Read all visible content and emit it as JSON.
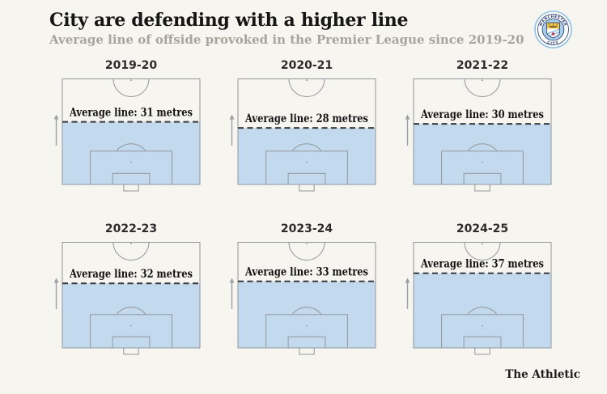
{
  "header": {
    "title": "City are defending with a higher line",
    "subtitle": "Average line of offside provoked in the Premier League since 2019-20",
    "logo_top": "MANCHESTER",
    "logo_bottom": "CITY"
  },
  "footer": {
    "brand": "The Athletic"
  },
  "chart_data": {
    "type": "pitch-small-multiples",
    "title": "City are defending with a higher line",
    "subtitle": "Average line of offside provoked in the Premier League since 2019-20",
    "unit": "metres",
    "seasons": [
      {
        "season": "2019-20",
        "metres": 31,
        "label": "Average line: 31 metres"
      },
      {
        "season": "2020-21",
        "metres": 28,
        "label": "Average line: 28 metres"
      },
      {
        "season": "2021-22",
        "metres": 30,
        "label": "Average line: 30 metres"
      },
      {
        "season": "2022-23",
        "metres": 32,
        "label": "Average line: 32 metres"
      },
      {
        "season": "2023-24",
        "metres": 33,
        "label": "Average line: 33 metres"
      },
      {
        "season": "2024-25",
        "metres": 37,
        "label": "Average line: 37 metres"
      }
    ],
    "layout_hint": "2 rows x 3 columns, half-pitch viewed toward own goal, shaded zone from goal line up to average offside line, arrow shows direction of play",
    "colors": {
      "background": "#f6f5ef",
      "zone_fill": "#c2d9ee",
      "pitch_line": "#93989e",
      "dashed_line": "#3a3a3a",
      "arrow": "#9aa0a4",
      "title_text": "#161616",
      "subtitle_text": "#a7a49b",
      "badge_navy": "#24356b",
      "badge_sky": "#8fc2e6"
    }
  }
}
